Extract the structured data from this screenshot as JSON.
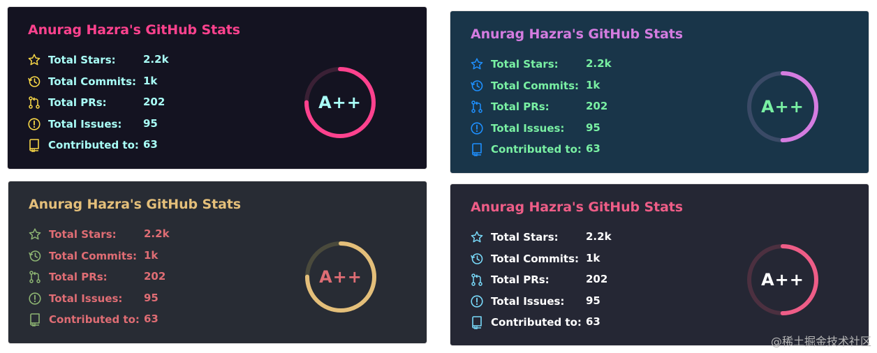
{
  "cards": [
    {
      "theme": {
        "bg": "#141321",
        "title": "#fe428e",
        "icon": "#f8d847",
        "text": "#a9fef7",
        "ring": "#fe428e",
        "ring_track": "#3a2035",
        "rank_text": "#a9fef7"
      },
      "title": "Anurag Hazra's GitHub Stats",
      "stats": [
        {
          "icon": "star-icon",
          "label": "Total Stars:",
          "value": "2.2k"
        },
        {
          "icon": "history-icon",
          "label": "Total Commits:",
          "value": "1k"
        },
        {
          "icon": "pull-request-icon",
          "label": "Total PRs:",
          "value": "202"
        },
        {
          "icon": "issue-icon",
          "label": "Total Issues:",
          "value": "95"
        },
        {
          "icon": "repo-icon",
          "label": "Contributed to:",
          "value": "63"
        }
      ],
      "rank": {
        "label": "A++",
        "progress": 0.75
      }
    },
    {
      "theme": {
        "bg": "#193549",
        "title": "#d47ce0",
        "icon": "#1e90ff",
        "text": "#79f0a3",
        "ring": "#d47ce0",
        "ring_track": "#3a4a66",
        "rank_text": "#79f0a3"
      },
      "title": "Anurag Hazra's GitHub Stats",
      "stats": [
        {
          "icon": "star-icon",
          "label": "Total Stars:",
          "value": "2.2k"
        },
        {
          "icon": "history-icon",
          "label": "Total Commits:",
          "value": "1k"
        },
        {
          "icon": "pull-request-icon",
          "label": "Total PRs:",
          "value": "202"
        },
        {
          "icon": "issue-icon",
          "label": "Total Issues:",
          "value": "95"
        },
        {
          "icon": "repo-icon",
          "label": "Contributed to:",
          "value": "63"
        }
      ],
      "rank": {
        "label": "A++",
        "progress": 0.5
      }
    },
    {
      "theme": {
        "bg": "#282c34",
        "title": "#e4bf7a",
        "icon": "#8eb573",
        "text": "#df6d74",
        "ring": "#e4bf7a",
        "ring_track": "#4a4a3c",
        "rank_text": "#df6d74"
      },
      "title": "Anurag Hazra's GitHub Stats",
      "stats": [
        {
          "icon": "star-icon",
          "label": "Total Stars:",
          "value": "2.2k"
        },
        {
          "icon": "history-icon",
          "label": "Total Commits:",
          "value": "1k"
        },
        {
          "icon": "pull-request-icon",
          "label": "Total PRs:",
          "value": "202"
        },
        {
          "icon": "issue-icon",
          "label": "Total Issues:",
          "value": "95"
        },
        {
          "icon": "repo-icon",
          "label": "Contributed to:",
          "value": "63"
        }
      ],
      "rank": {
        "label": "A++",
        "progress": 0.75
      }
    },
    {
      "theme": {
        "bg": "#252734",
        "title": "#ee5d87",
        "icon": "#79dafa",
        "text": "#ffffff",
        "ring": "#ee5d87",
        "ring_track": "#4c3040",
        "rank_text": "#ffffff"
      },
      "title": "Anurag Hazra's GitHub Stats",
      "stats": [
        {
          "icon": "star-icon",
          "label": "Total Stars:",
          "value": "2.2k"
        },
        {
          "icon": "history-icon",
          "label": "Total Commits:",
          "value": "1k"
        },
        {
          "icon": "pull-request-icon",
          "label": "Total PRs:",
          "value": "202"
        },
        {
          "icon": "issue-icon",
          "label": "Total Issues:",
          "value": "95"
        },
        {
          "icon": "repo-icon",
          "label": "Contributed to:",
          "value": "63"
        }
      ],
      "rank": {
        "label": "A++",
        "progress": 0.5
      }
    }
  ],
  "watermark": "@稀土掘金技术社区"
}
